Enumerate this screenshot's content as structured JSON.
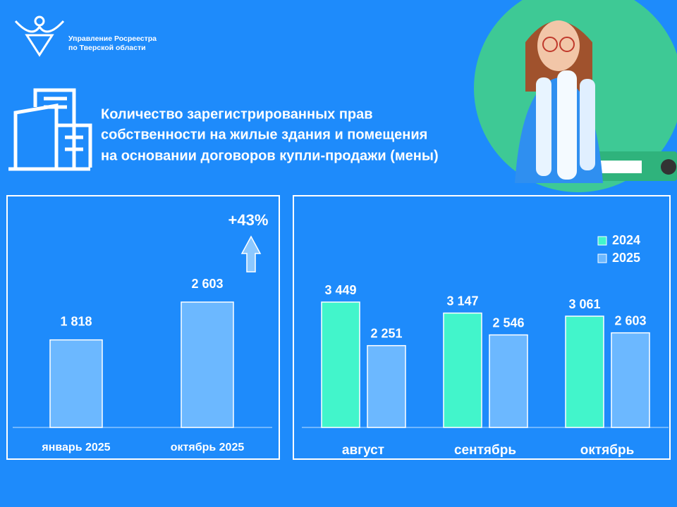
{
  "header": {
    "org": [
      "Управление Росреестра",
      "по Тверской области"
    ],
    "title": [
      "Количество зарегистрированных прав",
      "собственности на жилые здания и помещения",
      "на основании договоров купли-продажи (мены)"
    ]
  },
  "chart_data": [
    {
      "type": "bar",
      "categories": [
        "январь 2025",
        "октябрь 2025"
      ],
      "values": [
        1818,
        2603
      ],
      "value_labels": [
        "1 818",
        "2 603"
      ],
      "color": "#6cb8ff",
      "annotation": "+43%"
    },
    {
      "type": "grouped-bar",
      "categories": [
        "август",
        "сентябрь",
        "октябрь"
      ],
      "series": [
        {
          "name": "2024",
          "color": "#42f5cb",
          "values": [
            3449,
            3147,
            3061
          ],
          "value_labels": [
            "3 449",
            "3 147",
            "3 061"
          ]
        },
        {
          "name": "2025",
          "color": "#6cb8ff",
          "values": [
            2251,
            2546,
            2603
          ],
          "value_labels": [
            "2 251",
            "2 546",
            "2 603"
          ]
        }
      ]
    }
  ]
}
